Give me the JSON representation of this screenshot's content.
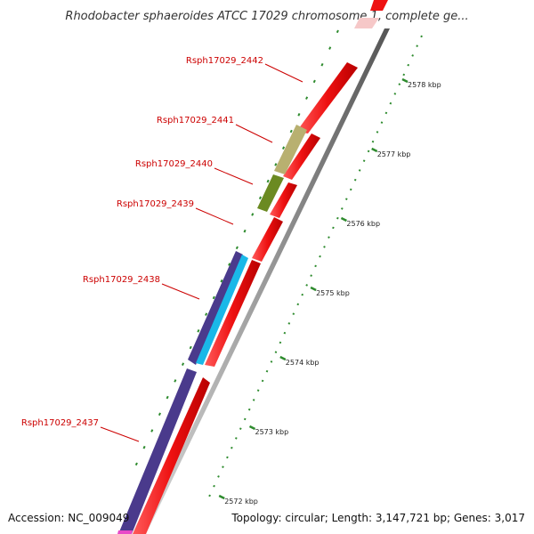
{
  "title": "Rhodobacter sphaeroides ATCC 17029 chromosome 1, complete ge...",
  "footer": {
    "accession": "Accession: NC_009049",
    "summary": "Topology: circular; Length: 3,147,721 bp; Genes: 3,017"
  },
  "colors": {
    "forward_cds": "#ee1111",
    "reverse_cds_dark": "#4a3a8c",
    "reverse_cds_cyan": "#1ab8e8",
    "olive_gene": "#6b8a22",
    "khaki_gene": "#b8b070",
    "backbone": "#9a9a9a",
    "tick": "#2e8b2e",
    "label": "#cc0000",
    "leader": "#cc0000"
  },
  "ticks": [
    {
      "label": "2578 kbp",
      "kbp": 2578
    },
    {
      "label": "2577 kbp",
      "kbp": 2577
    },
    {
      "label": "2576 kbp",
      "kbp": 2576
    },
    {
      "label": "2575 kbp",
      "kbp": 2575
    },
    {
      "label": "2574 kbp",
      "kbp": 2574
    },
    {
      "label": "2573 kbp",
      "kbp": 2573
    },
    {
      "label": "2572 kbp",
      "kbp": 2572
    }
  ],
  "gene_labels": [
    {
      "name": "Rsph17029_2442"
    },
    {
      "name": "Rsph17029_2441"
    },
    {
      "name": "Rsph17029_2440"
    },
    {
      "name": "Rsph17029_2439"
    },
    {
      "name": "Rsph17029_2438"
    },
    {
      "name": "Rsph17029_2437"
    }
  ]
}
